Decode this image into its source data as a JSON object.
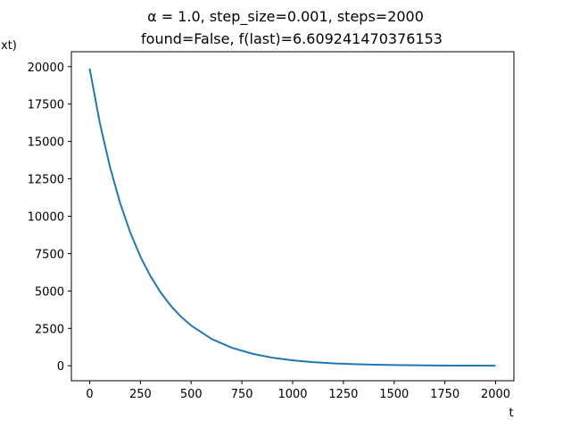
{
  "chart_data": {
    "type": "line",
    "title_line1": "α = 1.0, step_size=0.001, steps=2000",
    "title_line2": "found=False, f(last)=6.609241470376153",
    "xlabel": "t",
    "ylabel": "xt)",
    "xlim": [
      -90,
      2090
    ],
    "ylim": [
      -1000,
      21000
    ],
    "xticks": [
      0,
      250,
      500,
      750,
      1000,
      1250,
      1500,
      1750,
      2000
    ],
    "yticks": [
      0,
      2500,
      5000,
      7500,
      10000,
      12500,
      15000,
      17500,
      20000
    ],
    "grid": false,
    "line_color": "#1f77b4",
    "series": [
      {
        "x": [
          0,
          50,
          100,
          150,
          200,
          250,
          300,
          350,
          400,
          450,
          500,
          600,
          700,
          800,
          900,
          1000,
          1100,
          1200,
          1300,
          1400,
          1500,
          1600,
          1700,
          1800,
          1900,
          2000
        ],
        "values": [
          19880,
          16250,
          13300,
          10890,
          8920,
          7300,
          5980,
          4900,
          4010,
          3280,
          2690,
          1800,
          1210,
          810,
          540,
          362,
          243,
          163,
          109,
          73,
          49,
          33,
          22,
          15,
          10,
          6.6
        ]
      }
    ]
  }
}
